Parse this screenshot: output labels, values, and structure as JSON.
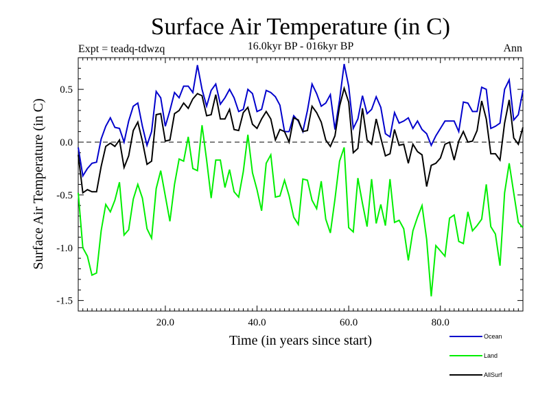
{
  "chart_data": {
    "type": "line",
    "title": "Surface Air Temperature (in C)",
    "subtitle": "16.0kyr BP - 016kyr BP",
    "experiment": "Expt = teadq-tdwzq",
    "period": "Ann",
    "xlabel": "Time (in years since start)",
    "ylabel": "Surface Air Temperature (in C)",
    "xlim": [
      1,
      98
    ],
    "ylim": [
      -1.6,
      0.8
    ],
    "xticks": [
      20,
      40,
      60,
      80
    ],
    "xtick_labels": [
      "20.0",
      "40.0",
      "60.0",
      "80.0"
    ],
    "yticks": [
      0.5,
      0.0,
      -0.5,
      -1.0,
      -1.5
    ],
    "ytick_labels": [
      "0.5",
      "0.0",
      "-0.5",
      "-1.0",
      "-1.5"
    ],
    "zero_line": true,
    "x": [
      1,
      2,
      3,
      4,
      5,
      6,
      7,
      8,
      9,
      10,
      11,
      12,
      13,
      14,
      15,
      16,
      17,
      18,
      19,
      20,
      21,
      22,
      23,
      24,
      25,
      26,
      27,
      28,
      29,
      30,
      31,
      32,
      33,
      34,
      35,
      36,
      37,
      38,
      39,
      40,
      41,
      42,
      43,
      44,
      45,
      46,
      47,
      48,
      49,
      50,
      51,
      52,
      53,
      54,
      55,
      56,
      57,
      58,
      59,
      60,
      61,
      62,
      63,
      64,
      65,
      66,
      67,
      68,
      69,
      70,
      71,
      72,
      73,
      74,
      75,
      76,
      77,
      78,
      79,
      80,
      81,
      82,
      83,
      84,
      85,
      86,
      87,
      88,
      89,
      90,
      91,
      92,
      93,
      94,
      95,
      96,
      97,
      98
    ],
    "series": [
      {
        "name": "Ocean",
        "color": "#0000cc",
        "values": [
          -0.05,
          -0.32,
          -0.25,
          -0.2,
          -0.19,
          0.03,
          0.15,
          0.23,
          0.14,
          0.13,
          0.0,
          0.2,
          0.34,
          0.37,
          0.15,
          -0.03,
          0.1,
          0.48,
          0.42,
          0.15,
          0.3,
          0.47,
          0.42,
          0.53,
          0.53,
          0.47,
          0.73,
          0.5,
          0.34,
          0.49,
          0.55,
          0.36,
          0.42,
          0.5,
          0.42,
          0.29,
          0.31,
          0.5,
          0.46,
          0.29,
          0.31,
          0.49,
          0.47,
          0.43,
          0.35,
          0.1,
          0.1,
          0.25,
          0.2,
          0.1,
          0.3,
          0.55,
          0.46,
          0.34,
          0.37,
          0.45,
          0.12,
          0.4,
          0.74,
          0.53,
          0.13,
          0.22,
          0.44,
          0.27,
          0.31,
          0.43,
          0.33,
          0.08,
          0.05,
          0.28,
          0.18,
          0.2,
          0.23,
          0.13,
          0.2,
          0.12,
          0.08,
          -0.03,
          0.06,
          0.13,
          0.2,
          0.2,
          0.2,
          0.1,
          0.38,
          0.37,
          0.29,
          0.29,
          0.52,
          0.5,
          0.13,
          0.15,
          0.18,
          0.5,
          0.59,
          0.21,
          0.26,
          0.49
        ]
      },
      {
        "name": "Land",
        "color": "#00ee00",
        "values": [
          -0.48,
          -1.0,
          -1.08,
          -1.26,
          -1.24,
          -0.84,
          -0.59,
          -0.66,
          -0.55,
          -0.38,
          -0.88,
          -0.83,
          -0.54,
          -0.4,
          -0.53,
          -0.82,
          -0.91,
          -0.44,
          -0.27,
          -0.51,
          -0.75,
          -0.4,
          -0.16,
          -0.18,
          0.05,
          -0.25,
          -0.27,
          0.16,
          -0.17,
          -0.53,
          -0.17,
          -0.17,
          -0.43,
          -0.26,
          -0.47,
          -0.52,
          -0.28,
          0.07,
          -0.29,
          -0.45,
          -0.65,
          -0.2,
          -0.12,
          -0.52,
          -0.51,
          -0.36,
          -0.51,
          -0.71,
          -0.78,
          -0.35,
          -0.36,
          -0.55,
          -0.63,
          -0.37,
          -0.73,
          -0.86,
          -0.54,
          -0.18,
          -0.05,
          -0.81,
          -0.85,
          -0.34,
          -0.58,
          -0.8,
          -0.35,
          -0.77,
          -0.59,
          -0.79,
          -0.35,
          -0.76,
          -0.74,
          -0.82,
          -1.12,
          -0.84,
          -0.71,
          -0.6,
          -0.92,
          -1.46,
          -0.98,
          -1.03,
          -1.08,
          -0.72,
          -0.69,
          -0.94,
          -0.96,
          -0.66,
          -0.84,
          -0.79,
          -0.73,
          -0.4,
          -0.8,
          -0.87,
          -1.17,
          -0.48,
          -0.2,
          -0.48,
          -0.76,
          -0.81
        ]
      },
      {
        "name": "AllSurf",
        "color": "#000000",
        "values": [
          -0.12,
          -0.48,
          -0.45,
          -0.47,
          -0.47,
          -0.23,
          -0.04,
          -0.01,
          -0.04,
          0.02,
          -0.24,
          -0.13,
          0.11,
          0.19,
          0.01,
          -0.21,
          -0.18,
          0.26,
          0.27,
          0.01,
          0.02,
          0.27,
          0.3,
          0.37,
          0.32,
          0.41,
          0.46,
          0.44,
          0.25,
          0.26,
          0.45,
          0.22,
          0.22,
          0.31,
          0.12,
          0.11,
          0.28,
          0.33,
          0.17,
          0.13,
          0.22,
          0.29,
          0.22,
          0.02,
          0.12,
          0.1,
          0.0,
          0.23,
          0.21,
          0.1,
          0.11,
          0.34,
          0.28,
          0.19,
          0.02,
          -0.04,
          0.06,
          0.34,
          0.51,
          0.38,
          -0.1,
          -0.06,
          0.32,
          0.02,
          -0.02,
          0.22,
          0.04,
          -0.13,
          -0.11,
          0.12,
          -0.03,
          -0.02,
          -0.2,
          -0.02,
          -0.09,
          -0.12,
          -0.42,
          -0.22,
          -0.2,
          -0.15,
          -0.02,
          0.0,
          -0.17,
          0.01,
          0.1,
          0.0,
          0.01,
          0.11,
          0.39,
          0.22,
          -0.11,
          -0.11,
          -0.17,
          0.18,
          0.4,
          0.04,
          -0.02,
          0.14
        ]
      }
    ],
    "legend": {
      "position": "bottom-right",
      "entries": [
        {
          "label": "Ocean",
          "color": "#0000cc"
        },
        {
          "label": "Land",
          "color": "#00ee00"
        },
        {
          "label": "AllSurf",
          "color": "#000000"
        }
      ]
    }
  }
}
